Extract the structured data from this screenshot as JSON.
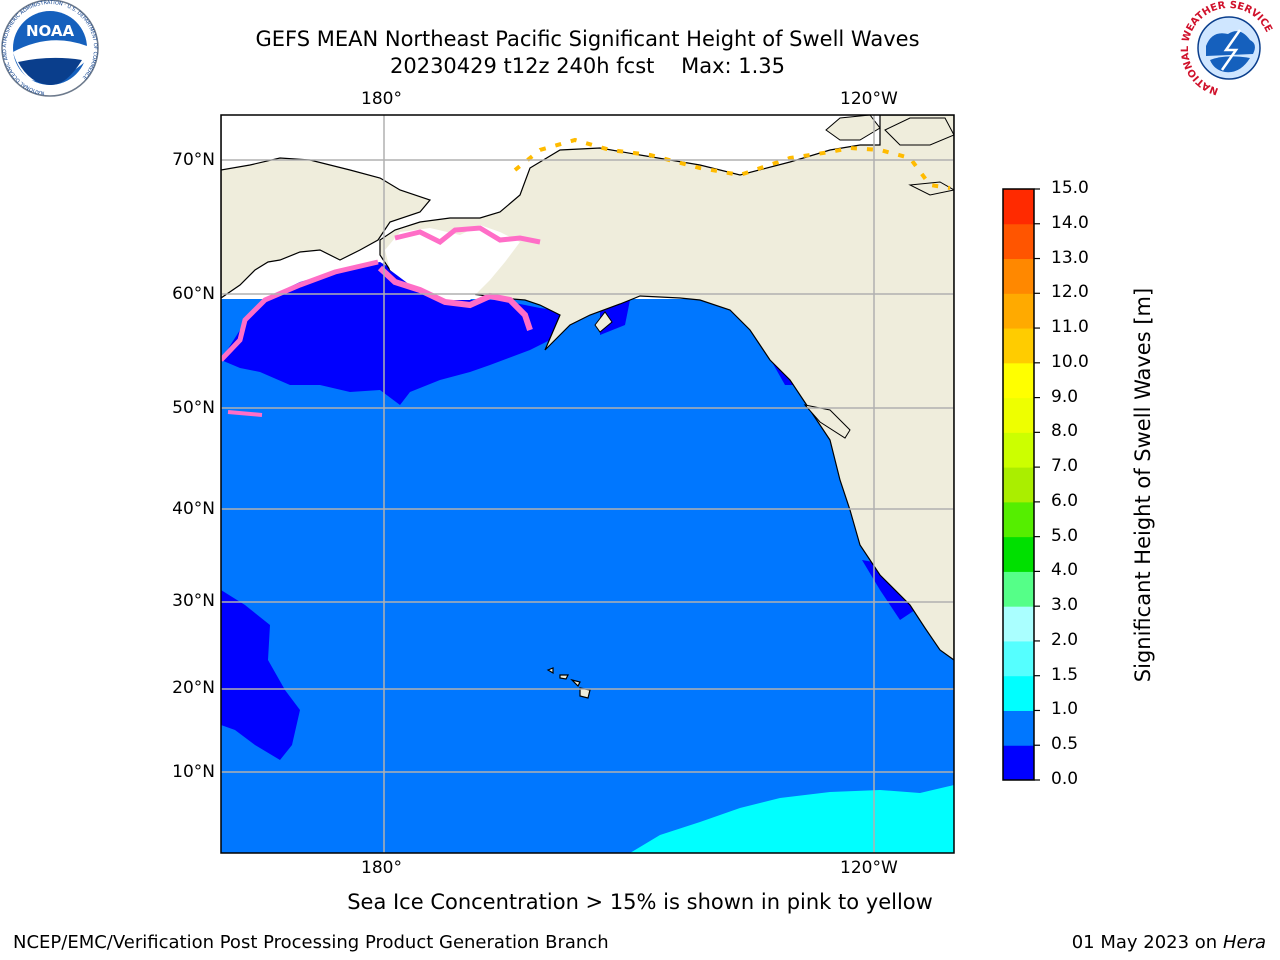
{
  "title_line1": "GEFS MEAN Northeast Pacific Significant Height of Swell Waves",
  "title_line2": "20230429 t12z 240h fcst    Max: 1.35",
  "logos": {
    "noaa": {
      "text": "NOAA",
      "ring_text": "NATIONAL OCEANIC AND ATMOSPHERIC ADMINISTRATION · U.S. DEPARTMENT OF COMMERCE",
      "color": "#0a4d9c"
    },
    "nws": {
      "ring_text": "NATIONAL WEATHER SERVICE",
      "color": "#d0112b"
    }
  },
  "map": {
    "lon_labels": [
      "180°",
      "120°W"
    ],
    "lat_labels": [
      "70°N",
      "60°N",
      "50°N",
      "40°N",
      "30°N",
      "20°N",
      "10°N"
    ],
    "colors": {
      "ocean": "#0077ff",
      "low": "#0000ff",
      "mid": "#00ffff",
      "land": "#efeddc",
      "ice_edge": "#ff6ec7",
      "ice_tip": "#ffbb00"
    }
  },
  "colorbar": {
    "label": "Significant Height of Swell Waves [m]",
    "ticks": [
      "0.0",
      "0.5",
      "1.0",
      "1.5",
      "2.0",
      "3.0",
      "4.0",
      "5.0",
      "6.0",
      "7.0",
      "8.0",
      "9.0",
      "10.0",
      "11.0",
      "12.0",
      "13.0",
      "14.0",
      "15.0"
    ],
    "colors": [
      "#0000ff",
      "#0077ff",
      "#00ffff",
      "#55ffff",
      "#aaffff",
      "#55ff88",
      "#00e000",
      "#55ee00",
      "#aaee00",
      "#ccff00",
      "#eeff00",
      "#ffff00",
      "#ffcc00",
      "#ffaa00",
      "#ff8800",
      "#ff5500",
      "#ff2a00",
      "#ff0000"
    ]
  },
  "note": "Sea Ice Concentration > 15% is shown in pink to yellow",
  "footer_left": "NCEP/EMC/Verification Post Processing Product Generation Branch",
  "footer_date": "01 May 2023 on",
  "footer_machine": "Hera"
}
